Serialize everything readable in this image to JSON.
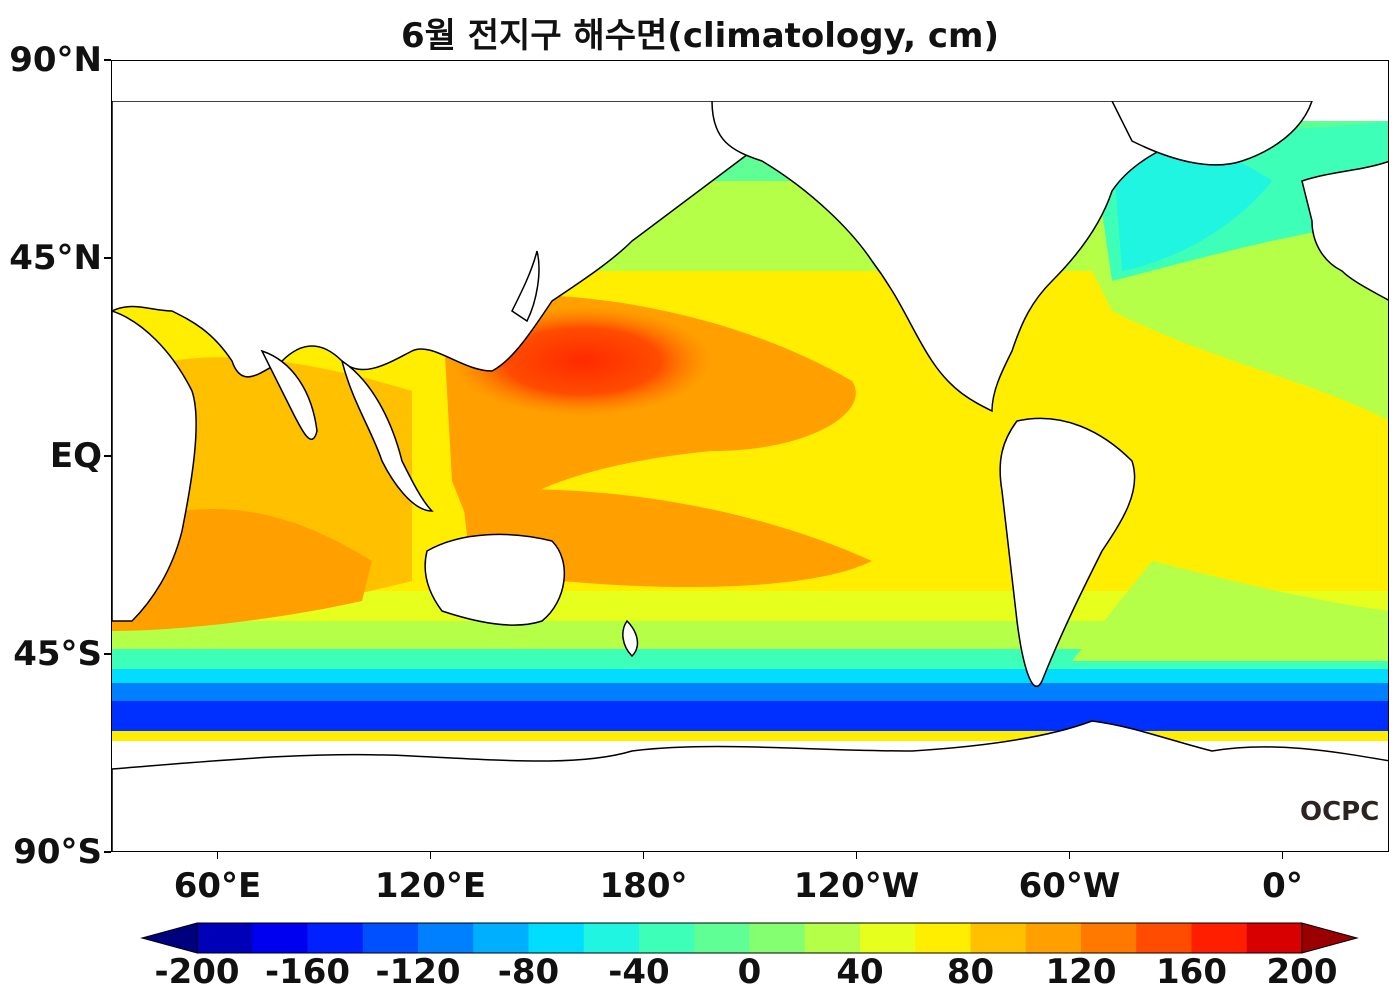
{
  "title": "6월 전지구 해수면(climatology, cm)",
  "logo_text": "OCPC",
  "lat_labels": [
    "90°N",
    "45°N",
    "EQ",
    "45°S",
    "90°S"
  ],
  "lat_values": [
    90,
    45,
    0,
    -45,
    -90
  ],
  "lon_labels": [
    "60°E",
    "120°E",
    "180°",
    "120°W",
    "60°W",
    "0°"
  ],
  "lon_values": [
    60,
    120,
    180,
    240,
    300,
    360
  ],
  "colorbar": {
    "min": -200,
    "max": 200,
    "step": 20,
    "labels": [
      "-200",
      "-160",
      "-120",
      "-80",
      "-40",
      "0",
      "40",
      "80",
      "120",
      "160",
      "200"
    ],
    "colors": [
      "#00007f",
      "#0000b8",
      "#0000f0",
      "#0020ff",
      "#0050ff",
      "#0080ff",
      "#00b0ff",
      "#00ddff",
      "#1ff5e0",
      "#3dffb8",
      "#5fff96",
      "#85ff72",
      "#b5ff48",
      "#e6ff1d",
      "#ffee00",
      "#ffc000",
      "#ffa000",
      "#ff7800",
      "#ff4c00",
      "#ff1f00",
      "#d80000",
      "#9b0000"
    ],
    "extend_low_color": "#00007f",
    "extend_high_color": "#9b0000"
  },
  "map": {
    "lon_range": [
      30,
      390
    ],
    "lat_range": [
      -90,
      90
    ],
    "land_color": "#ffffff",
    "coast_color": "#000000"
  }
}
